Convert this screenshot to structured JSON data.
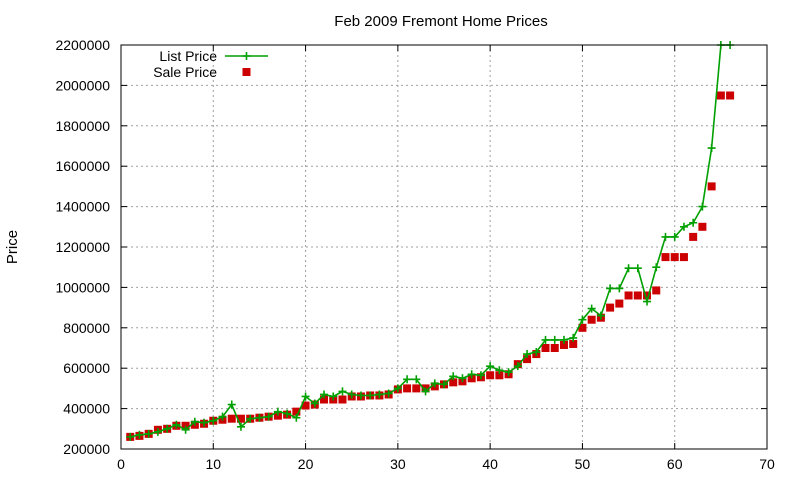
{
  "chart_data": {
    "type": "line",
    "title": "Feb 2009 Fremont Home Prices",
    "xlabel": "",
    "ylabel": "Price",
    "xlim": [
      0,
      70
    ],
    "ylim": [
      200000,
      2200000
    ],
    "xticks": [
      "0",
      "10",
      "20",
      "30",
      "40",
      "50",
      "60",
      "70"
    ],
    "yticks": [
      "200000",
      "400000",
      "600000",
      "800000",
      "1000000",
      "1200000",
      "1400000",
      "1600000",
      "1800000",
      "2000000",
      "2200000"
    ],
    "grid": true,
    "legend_position": "top-left",
    "series": [
      {
        "name": "List Price",
        "style": "line+cross",
        "color": "#00a000",
        "x": [
          1,
          2,
          3,
          4,
          5,
          6,
          7,
          8,
          9,
          10,
          11,
          12,
          13,
          14,
          15,
          16,
          17,
          18,
          19,
          20,
          21,
          22,
          23,
          24,
          25,
          26,
          27,
          28,
          29,
          30,
          31,
          32,
          33,
          34,
          35,
          36,
          37,
          38,
          39,
          40,
          41,
          42,
          43,
          44,
          45,
          46,
          47,
          48,
          49,
          50,
          51,
          52,
          53,
          54,
          55,
          56,
          57,
          58,
          59,
          60,
          61,
          62,
          63,
          64,
          65,
          66
        ],
        "y": [
          260000,
          270000,
          275000,
          285000,
          300000,
          320000,
          295000,
          335000,
          330000,
          340000,
          360000,
          420000,
          310000,
          350000,
          355000,
          360000,
          385000,
          375000,
          355000,
          460000,
          425000,
          470000,
          460000,
          485000,
          470000,
          465000,
          465000,
          470000,
          475000,
          500000,
          545000,
          545000,
          485000,
          525000,
          520000,
          560000,
          550000,
          570000,
          565000,
          610000,
          590000,
          580000,
          610000,
          670000,
          680000,
          740000,
          740000,
          740000,
          750000,
          840000,
          895000,
          860000,
          995000,
          995000,
          1095000,
          1095000,
          930000,
          1100000,
          1250000,
          1250000,
          1300000,
          1320000,
          1400000,
          1690000,
          2200000,
          2200000
        ]
      },
      {
        "name": "Sale Price",
        "style": "square-markers",
        "color": "#cc0000",
        "x": [
          1,
          2,
          3,
          4,
          5,
          6,
          7,
          8,
          9,
          10,
          11,
          12,
          13,
          14,
          15,
          16,
          17,
          18,
          19,
          20,
          21,
          22,
          23,
          24,
          25,
          26,
          27,
          28,
          29,
          30,
          31,
          32,
          33,
          34,
          35,
          36,
          37,
          38,
          39,
          40,
          41,
          42,
          43,
          44,
          45,
          46,
          47,
          48,
          49,
          50,
          51,
          52,
          53,
          54,
          55,
          56,
          57,
          58,
          59,
          60,
          61,
          62,
          63,
          64,
          65,
          66
        ],
        "y": [
          260000,
          265000,
          275000,
          295000,
          300000,
          315000,
          315000,
          320000,
          325000,
          340000,
          345000,
          350000,
          350000,
          350000,
          355000,
          360000,
          365000,
          370000,
          385000,
          415000,
          420000,
          445000,
          445000,
          445000,
          460000,
          460000,
          465000,
          465000,
          470000,
          495000,
          500000,
          500000,
          500000,
          510000,
          520000,
          530000,
          535000,
          550000,
          555000,
          565000,
          565000,
          570000,
          620000,
          645000,
          670000,
          700000,
          700000,
          715000,
          720000,
          800000,
          840000,
          850000,
          900000,
          920000,
          960000,
          960000,
          960000,
          985000,
          1150000,
          1150000,
          1150000,
          1250000,
          1300000,
          1500000,
          1950000,
          1950000
        ]
      }
    ]
  }
}
